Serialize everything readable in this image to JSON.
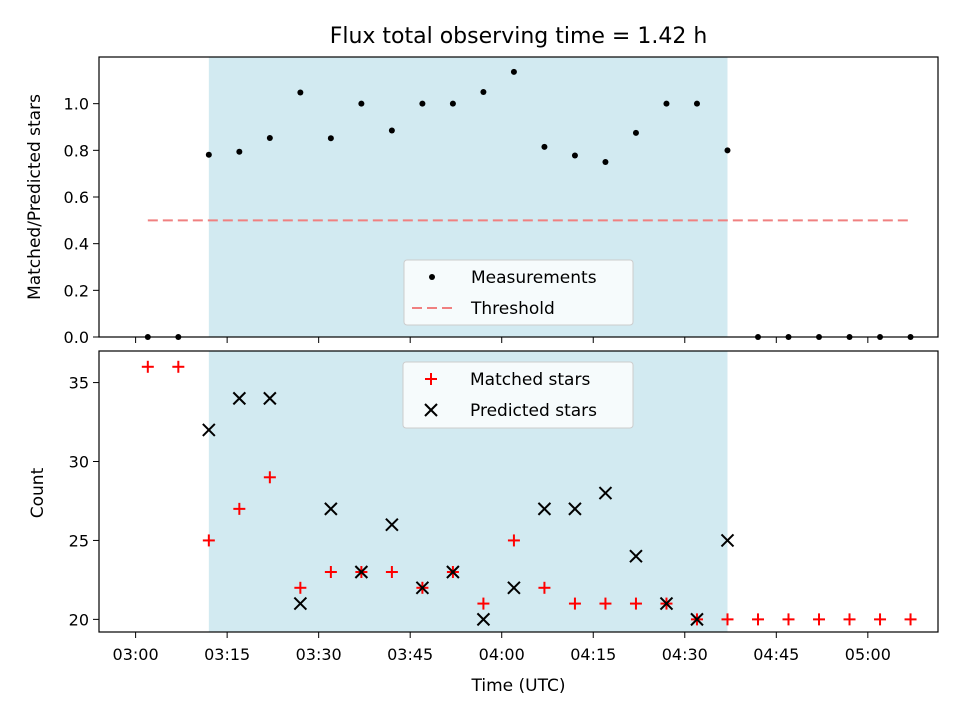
{
  "chart_data": [
    {
      "type": "scatter",
      "title": "Flux total observing time = 1.42 h",
      "ylabel": "Matched/Predicted stars",
      "xlabel": "",
      "ylim": [
        0,
        1.2
      ],
      "yticks": [
        "0.0",
        "0.2",
        "0.4",
        "0.6",
        "0.8",
        "1.0"
      ],
      "shaded_span": [
        "03:12",
        "04:37"
      ],
      "shade_color": "#add8e6",
      "legend": {
        "placement": "lower center",
        "entries": [
          "Measurements",
          "Threshold"
        ]
      },
      "series": [
        {
          "name": "Measurements",
          "marker": "dot",
          "color": "#000000",
          "x": [
            "03:02",
            "03:07",
            "03:12",
            "03:17",
            "03:22",
            "03:27",
            "03:32",
            "03:37",
            "03:42",
            "03:47",
            "03:52",
            "03:57",
            "04:02",
            "04:07",
            "04:12",
            "04:17",
            "04:22",
            "04:27",
            "04:32",
            "04:37",
            "04:42",
            "04:47",
            "04:52",
            "04:57",
            "05:02",
            "05:07"
          ],
          "y": [
            0,
            0,
            0.781,
            0.794,
            0.853,
            1.048,
            0.852,
            1.0,
            0.885,
            1.0,
            1.0,
            1.05,
            1.136,
            0.815,
            0.778,
            0.75,
            0.875,
            1.0,
            1.0,
            0.8,
            0,
            0,
            0,
            0,
            0,
            0
          ]
        },
        {
          "name": "Threshold",
          "marker": "dashed-line",
          "color": "#f08080",
          "x": [
            "03:02",
            "05:07"
          ],
          "y": [
            0.5,
            0.5
          ]
        }
      ]
    },
    {
      "type": "scatter",
      "title": "",
      "ylabel": "Count",
      "xlabel": "Time (UTC)",
      "ylim": [
        19.2,
        37
      ],
      "yticks": [
        "20",
        "25",
        "30",
        "35"
      ],
      "xticks": [
        "03:00",
        "03:15",
        "03:30",
        "03:45",
        "04:00",
        "04:15",
        "04:30",
        "04:45",
        "05:00"
      ],
      "shaded_span": [
        "03:12",
        "04:37"
      ],
      "shade_color": "#add8e6",
      "legend": {
        "placement": "upper center",
        "entries": [
          "Matched stars",
          "Predicted stars"
        ]
      },
      "series": [
        {
          "name": "Matched stars",
          "marker": "plus",
          "color": "#ff0000",
          "x": [
            "03:02",
            "03:07",
            "03:12",
            "03:17",
            "03:22",
            "03:27",
            "03:32",
            "03:37",
            "03:42",
            "03:47",
            "03:52",
            "03:57",
            "04:02",
            "04:07",
            "04:12",
            "04:17",
            "04:22",
            "04:27",
            "04:32",
            "04:37",
            "04:42",
            "04:47",
            "04:52",
            "04:57",
            "05:02",
            "05:07"
          ],
          "y": [
            36,
            36,
            25,
            27,
            29,
            22,
            23,
            23,
            23,
            22,
            23,
            21,
            25,
            22,
            21,
            21,
            21,
            21,
            20,
            20,
            20,
            20,
            20,
            20,
            20,
            20
          ]
        },
        {
          "name": "Predicted stars",
          "marker": "x",
          "color": "#000000",
          "x": [
            "03:12",
            "03:17",
            "03:22",
            "03:27",
            "03:32",
            "03:37",
            "03:42",
            "03:47",
            "03:52",
            "03:57",
            "04:02",
            "04:07",
            "04:12",
            "04:17",
            "04:22",
            "04:27",
            "04:32",
            "04:37"
          ],
          "y": [
            32,
            34,
            34,
            21,
            27,
            23,
            26,
            22,
            23,
            20,
            22,
            27,
            27,
            28,
            24,
            21,
            20,
            25
          ]
        }
      ]
    }
  ]
}
